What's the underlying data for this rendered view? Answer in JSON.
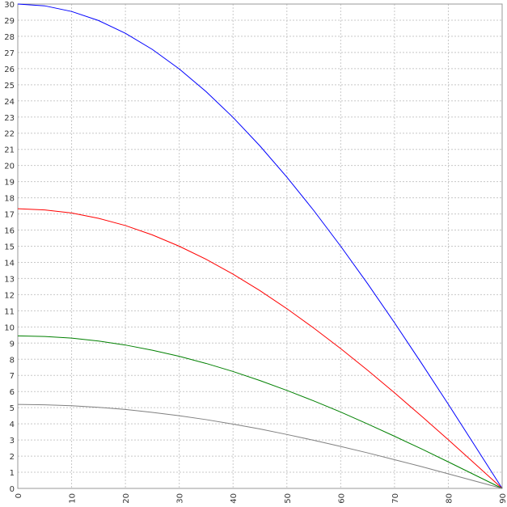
{
  "chart_data": {
    "type": "line",
    "x": [
      0,
      5,
      10,
      15,
      20,
      25,
      30,
      35,
      40,
      45,
      50,
      55,
      60,
      65,
      70,
      75,
      80,
      85,
      90
    ],
    "series": [
      {
        "color": "#0000ff",
        "values": [
          30,
          29.89,
          29.54,
          28.98,
          28.19,
          27.19,
          25.98,
          24.57,
          22.98,
          21.21,
          19.28,
          17.21,
          15,
          12.68,
          10.26,
          7.76,
          5.21,
          2.61,
          0
        ]
      },
      {
        "color": "#ff0000",
        "values": [
          17.32,
          17.25,
          17.06,
          16.73,
          16.28,
          15.7,
          15,
          14.19,
          13.27,
          12.25,
          11.13,
          9.93,
          8.66,
          7.32,
          5.92,
          4.48,
          3.01,
          1.51,
          0
        ]
      },
      {
        "color": "#008000",
        "values": [
          9.45,
          9.41,
          9.31,
          9.13,
          8.88,
          8.56,
          8.18,
          7.74,
          7.24,
          6.68,
          6.07,
          5.42,
          4.73,
          3.99,
          3.23,
          2.45,
          1.64,
          0.82,
          0
        ]
      },
      {
        "color": "#808080",
        "values": [
          5.2,
          5.18,
          5.12,
          5.02,
          4.89,
          4.71,
          4.5,
          4.26,
          3.98,
          3.68,
          3.34,
          2.98,
          2.6,
          2.2,
          1.78,
          1.35,
          0.9,
          0.45,
          0
        ]
      }
    ],
    "xlim": [
      0,
      90
    ],
    "xticks": [
      0,
      10,
      20,
      30,
      40,
      50,
      60,
      70,
      80,
      90
    ],
    "ylim": [
      0,
      30
    ],
    "yticks": [
      0,
      1,
      2,
      3,
      4,
      5,
      6,
      7,
      8,
      9,
      10,
      11,
      12,
      13,
      14,
      15,
      16,
      17,
      18,
      19,
      20,
      21,
      22,
      23,
      24,
      25,
      26,
      27,
      28,
      29,
      30
    ],
    "grid": true
  }
}
